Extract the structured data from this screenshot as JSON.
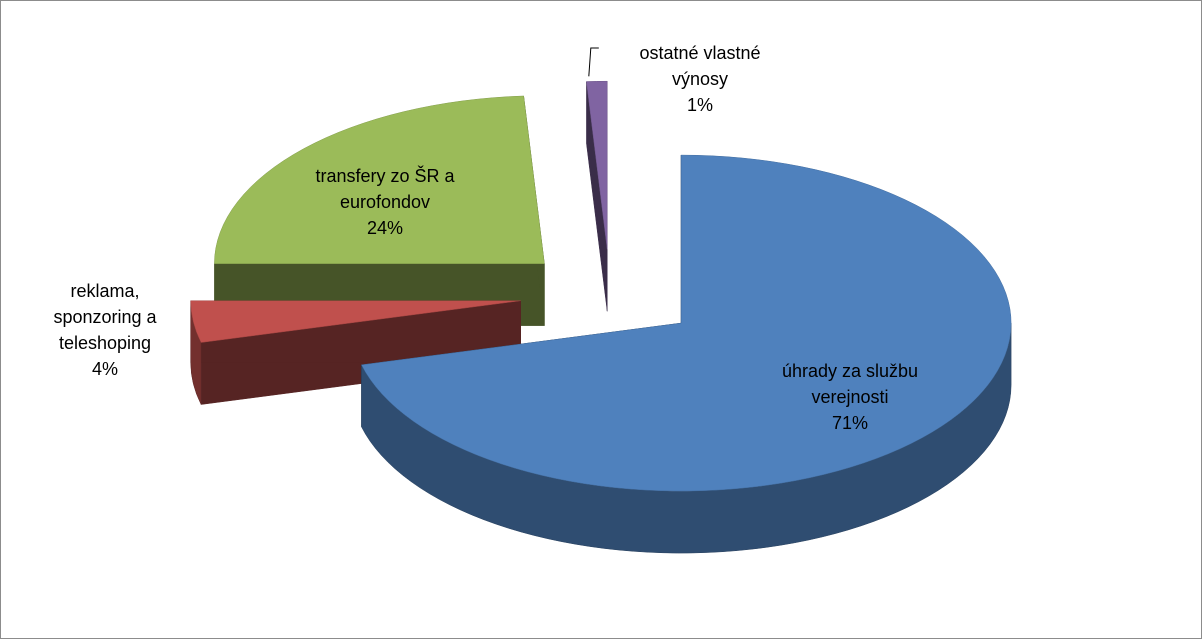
{
  "chart_data": {
    "type": "pie3d",
    "categories": [
      "úhrady za službu verejnosti",
      "reklama, sponzoring a teleshoping",
      "transfery zo ŠR a eurofondov",
      "ostatné vlastné výnosy"
    ],
    "values": [
      71,
      4,
      24,
      1
    ],
    "value_labels": [
      "71%",
      "4%",
      "24%",
      "1%"
    ],
    "colors": [
      "#4f81bd",
      "#c0504d",
      "#9bbb59",
      "#8064a2"
    ]
  }
}
